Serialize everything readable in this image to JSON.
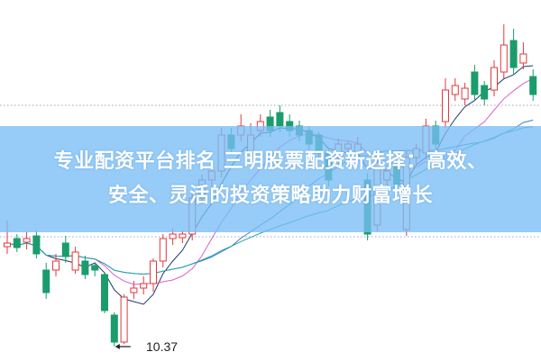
{
  "banner": {
    "line1": "专业配资平台排名 三明股票配资新选择：高效、",
    "line2": "安全、灵活的投资策略助力财富增长"
  },
  "chart_data": {
    "type": "candlestick",
    "colors": {
      "up": "#e0393e",
      "down": "#1a9c6c",
      "ma": [
        "#1f3a6b",
        "#d85fd0",
        "#3a7bd5",
        "#2aa5a5"
      ]
    },
    "grid": "dotted horizontal",
    "annotation": {
      "label": "10.37",
      "type": "low-price-marker"
    },
    "candles": [
      [
        11.48,
        11.52,
        11.77,
        11.4
      ],
      [
        11.57,
        11.47,
        11.62,
        11.42
      ],
      [
        11.53,
        11.57,
        11.65,
        11.45
      ],
      [
        11.6,
        11.4,
        11.66,
        11.35
      ],
      [
        11.22,
        10.97,
        11.3,
        10.9
      ],
      [
        11.22,
        11.32,
        11.4,
        11.15
      ],
      [
        11.52,
        11.37,
        11.6,
        11.3
      ],
      [
        11.22,
        11.42,
        11.48,
        11.18
      ],
      [
        11.32,
        11.17,
        11.38,
        11.12
      ],
      [
        11.27,
        11.22,
        11.3,
        11.15
      ],
      [
        11.17,
        10.77,
        11.2,
        10.74
      ],
      [
        10.72,
        10.42,
        10.75,
        10.37
      ],
      [
        10.42,
        10.92,
        10.95,
        10.4
      ],
      [
        10.97,
        11.02,
        11.1,
        10.9
      ],
      [
        11.02,
        11.07,
        11.15,
        10.95
      ],
      [
        11.07,
        11.32,
        11.35,
        10.98
      ],
      [
        11.32,
        11.57,
        11.62,
        11.25
      ],
      [
        11.57,
        11.62,
        11.68,
        11.5
      ],
      [
        11.58,
        11.62,
        11.66,
        11.52
      ],
      [
        11.62,
        12.02,
        12.08,
        11.55
      ],
      [
        12.02,
        12.22,
        12.28,
        11.95
      ],
      [
        12.22,
        12.32,
        12.4,
        12.15
      ],
      [
        12.32,
        12.72,
        12.8,
        12.25
      ],
      [
        12.72,
        12.57,
        12.8,
        12.5
      ],
      [
        12.72,
        12.82,
        12.95,
        12.65
      ],
      [
        12.52,
        12.72,
        12.85,
        12.45
      ],
      [
        12.77,
        12.87,
        12.95,
        12.7
      ],
      [
        12.92,
        12.77,
        13.0,
        12.7
      ],
      [
        12.97,
        12.82,
        13.05,
        12.75
      ],
      [
        12.87,
        12.77,
        12.95,
        12.7
      ],
      [
        12.82,
        12.72,
        12.88,
        12.65
      ],
      [
        12.77,
        12.62,
        12.82,
        12.55
      ],
      [
        12.72,
        12.52,
        12.75,
        12.45
      ],
      [
        12.52,
        12.22,
        12.55,
        12.15
      ],
      [
        12.47,
        12.62,
        12.68,
        12.4
      ],
      [
        12.57,
        12.62,
        12.66,
        12.5
      ],
      [
        12.52,
        12.62,
        12.7,
        12.45
      ],
      [
        12.22,
        11.62,
        12.3,
        11.55
      ],
      [
        11.72,
        12.42,
        12.5,
        11.65
      ],
      [
        12.22,
        12.32,
        12.38,
        12.15
      ],
      [
        12.37,
        12.17,
        12.45,
        12.1
      ],
      [
        11.67,
        12.47,
        12.55,
        11.6
      ],
      [
        12.47,
        12.57,
        12.62,
        12.4
      ],
      [
        12.52,
        12.82,
        12.9,
        12.45
      ],
      [
        12.82,
        12.62,
        12.88,
        12.55
      ],
      [
        12.87,
        13.22,
        13.35,
        12.8
      ],
      [
        13.17,
        13.27,
        13.35,
        13.1
      ],
      [
        13.12,
        13.24,
        13.3,
        13.05
      ],
      [
        13.42,
        13.17,
        13.5,
        13.1
      ],
      [
        13.27,
        13.12,
        13.32,
        13.05
      ],
      [
        13.22,
        13.47,
        13.55,
        13.15
      ],
      [
        13.42,
        13.72,
        13.95,
        13.35
      ],
      [
        13.77,
        13.47,
        13.9,
        13.4
      ],
      [
        13.52,
        13.62,
        13.75,
        13.45
      ],
      [
        13.37,
        13.17,
        13.45,
        13.1
      ]
    ],
    "ma_periods": [
      5,
      10,
      20,
      30
    ]
  }
}
